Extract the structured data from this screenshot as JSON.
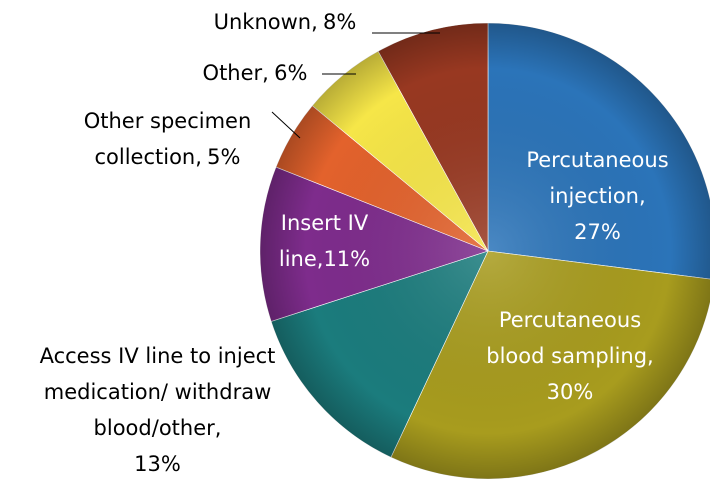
{
  "chart_data": {
    "type": "pie",
    "categories": [
      "Percutaneous injection,",
      "Percutaneous blood sampling,",
      "Access IV line to inject medication/ withdraw blood/other,",
      "Insert IV line,",
      "Other specimen collection,",
      "Other,",
      "Unknown,"
    ],
    "values": [
      27,
      30,
      13,
      11,
      5,
      6,
      8
    ],
    "value_labels": [
      "27%",
      "30%",
      "13%",
      "11%",
      "5%",
      "6%",
      "8%"
    ],
    "colors": [
      "#2b74b9",
      "#a89c1e",
      "#1b7c7d",
      "#7e2c8c",
      "#e3622c",
      "#f6e648",
      "#983821"
    ]
  }
}
